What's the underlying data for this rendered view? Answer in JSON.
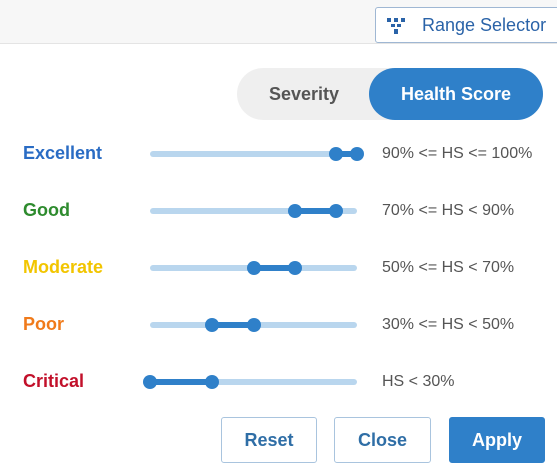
{
  "header": {
    "range_selector_label": "Range Selector",
    "range_selector_icon": "funnel-icon"
  },
  "toggle": {
    "options": [
      "Severity",
      "Health Score"
    ],
    "selected": "Health Score"
  },
  "rows": [
    {
      "label": "Excellent",
      "color": "#2a6cc4",
      "range_text": "90% <= HS <= 100%",
      "low": 90,
      "high": 100
    },
    {
      "label": "Good",
      "color": "#2e8b2e",
      "range_text": "70% <= HS < 90%",
      "low": 70,
      "high": 90
    },
    {
      "label": "Moderate",
      "color": "#f2c500",
      "range_text": "50% <= HS < 70%",
      "low": 50,
      "high": 70
    },
    {
      "label": "Poor",
      "color": "#f07a1a",
      "range_text": "30% <= HS < 50%",
      "low": 30,
      "high": 50
    },
    {
      "label": "Critical",
      "color": "#c2102a",
      "range_text": "HS < 30%",
      "low": 0,
      "high": 30
    }
  ],
  "buttons": {
    "reset": "Reset",
    "close": "Close",
    "apply": "Apply"
  },
  "colors": {
    "accent": "#2f80c9",
    "track": "#b9d6ee"
  }
}
